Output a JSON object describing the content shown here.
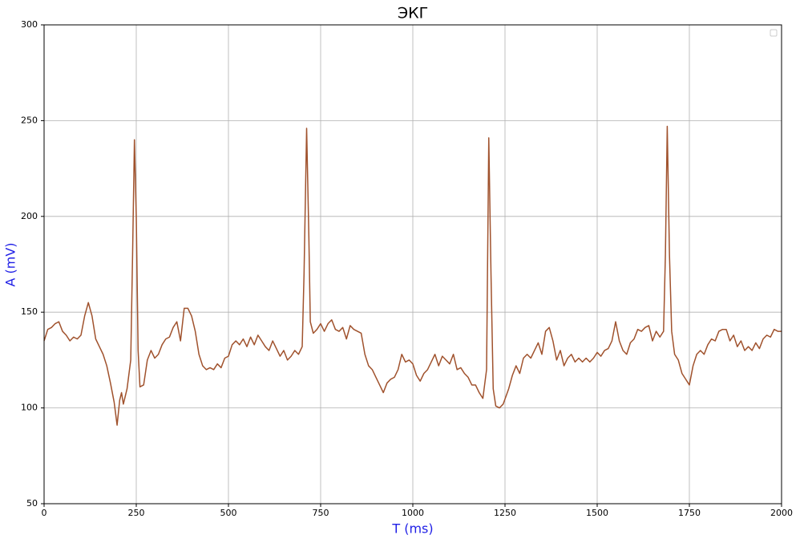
{
  "chart_data": {
    "type": "line",
    "title": "ЭКГ",
    "x_label": "T (ms)",
    "y_label": "A (mV)",
    "x": [
      0,
      10,
      20,
      30,
      40,
      50,
      60,
      70,
      80,
      90,
      100,
      110,
      120,
      130,
      140,
      150,
      160,
      170,
      180,
      190,
      198,
      205,
      210,
      215,
      225,
      235,
      240,
      245,
      250,
      255,
      260,
      270,
      280,
      290,
      300,
      310,
      320,
      330,
      340,
      350,
      360,
      370,
      380,
      390,
      400,
      410,
      420,
      430,
      440,
      450,
      460,
      470,
      480,
      490,
      500,
      510,
      520,
      530,
      540,
      550,
      560,
      570,
      580,
      590,
      600,
      610,
      620,
      630,
      640,
      650,
      660,
      670,
      680,
      690,
      700,
      705,
      712,
      718,
      722,
      730,
      740,
      750,
      760,
      770,
      780,
      790,
      800,
      810,
      820,
      830,
      840,
      850,
      860,
      870,
      880,
      890,
      900,
      910,
      920,
      930,
      940,
      950,
      960,
      970,
      980,
      990,
      1000,
      1010,
      1020,
      1030,
      1040,
      1050,
      1060,
      1070,
      1080,
      1090,
      1100,
      1110,
      1120,
      1130,
      1140,
      1150,
      1160,
      1170,
      1180,
      1190,
      1200,
      1206,
      1212,
      1218,
      1225,
      1235,
      1245,
      1260,
      1270,
      1280,
      1290,
      1300,
      1310,
      1320,
      1330,
      1340,
      1350,
      1360,
      1370,
      1380,
      1390,
      1400,
      1410,
      1420,
      1430,
      1440,
      1450,
      1460,
      1470,
      1480,
      1490,
      1500,
      1510,
      1520,
      1530,
      1540,
      1550,
      1560,
      1570,
      1580,
      1590,
      1600,
      1610,
      1620,
      1630,
      1640,
      1650,
      1660,
      1670,
      1680,
      1685,
      1690,
      1696,
      1702,
      1710,
      1720,
      1730,
      1740,
      1750,
      1760,
      1770,
      1780,
      1790,
      1800,
      1810,
      1820,
      1830,
      1840,
      1850,
      1860,
      1870,
      1880,
      1890,
      1900,
      1910,
      1920,
      1930,
      1940,
      1950,
      1960,
      1970,
      1980,
      1990,
      2000
    ],
    "values": [
      135,
      141,
      142,
      144,
      145,
      140,
      138,
      135,
      137,
      136,
      138,
      148,
      155,
      148,
      136,
      132,
      128,
      122,
      113,
      103,
      91,
      104,
      108,
      102,
      110,
      125,
      180,
      240,
      200,
      130,
      111,
      112,
      125,
      130,
      126,
      128,
      133,
      136,
      137,
      142,
      145,
      135,
      152,
      152,
      148,
      140,
      128,
      122,
      120,
      121,
      120,
      123,
      121,
      126,
      127,
      133,
      135,
      133,
      136,
      132,
      137,
      133,
      138,
      135,
      132,
      130,
      135,
      131,
      127,
      130,
      125,
      127,
      130,
      128,
      132,
      170,
      246,
      190,
      145,
      139,
      141,
      144,
      140,
      144,
      146,
      141,
      140,
      142,
      136,
      143,
      141,
      140,
      139,
      128,
      122,
      120,
      116,
      112,
      108,
      113,
      115,
      116,
      120,
      128,
      124,
      125,
      123,
      117,
      114,
      118,
      120,
      124,
      128,
      122,
      127,
      125,
      123,
      128,
      120,
      121,
      118,
      116,
      112,
      112,
      108,
      105,
      120,
      241,
      170,
      110,
      101,
      100,
      102,
      110,
      117,
      122,
      118,
      126,
      128,
      126,
      130,
      134,
      128,
      140,
      142,
      135,
      125,
      130,
      122,
      126,
      128,
      124,
      126,
      124,
      126,
      124,
      126,
      129,
      127,
      130,
      131,
      135,
      145,
      135,
      130,
      128,
      134,
      136,
      141,
      140,
      142,
      143,
      135,
      140,
      137,
      140,
      180,
      247,
      180,
      140,
      128,
      125,
      118,
      115,
      112,
      122,
      128,
      130,
      128,
      133,
      136,
      135,
      140,
      141,
      141,
      135,
      138,
      132,
      135,
      130,
      132,
      130,
      134,
      131,
      136,
      138,
      137,
      141,
      140,
      140
    ],
    "color": "#a0522d",
    "xlim": [
      0,
      2000
    ],
    "xticks": [
      0,
      250,
      500,
      750,
      1000,
      1250,
      1500,
      1750,
      2000
    ],
    "ylim": [
      50,
      300
    ],
    "yticks": [
      50,
      100,
      150,
      200,
      250,
      300
    ],
    "grid": true,
    "legend": "upper right"
  }
}
